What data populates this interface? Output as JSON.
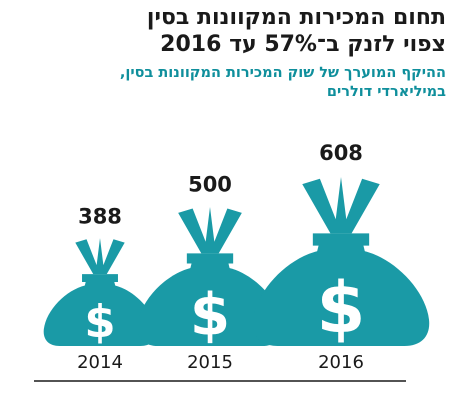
{
  "header": {
    "title_line1": "תחום המכירות המקוונות בסין",
    "title_line2": "צפוי לזנק ב־57% עד 2016",
    "subtitle_line1": "ההיקף המוערך של שוק המכירות המקוונות בסין,",
    "subtitle_line2": "במיליארדי דולרים"
  },
  "colors": {
    "bag": "#1a9aa6",
    "subtitle": "#0f8f9c",
    "text": "#1a1a1a",
    "axis": "#1a1a1a"
  },
  "icons": {
    "mark": "money-bag-icon",
    "symbol": "dollar-sign"
  },
  "chart_data": {
    "type": "bar",
    "mark": "money-bag",
    "categories": [
      "2014",
      "2015",
      "2016"
    ],
    "values": [
      388,
      500,
      608
    ],
    "value_labels": [
      "388",
      "500",
      "608"
    ],
    "title": "תחום המכירות המקוונות בסין צפוי לזנק ב־57% עד 2016",
    "subtitle": "ההיקף המוערך של שוק המכירות המקוונות בסין, במיליארדי דולרים",
    "xlabel": "",
    "ylabel": "",
    "grid": false,
    "legend": "none"
  }
}
